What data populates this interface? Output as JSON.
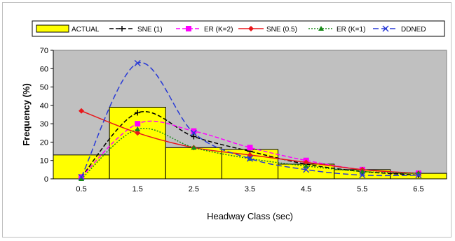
{
  "chart_data": {
    "type": "bar",
    "xlabel": "Headway Class (sec)",
    "ylabel": "Frequency (%)",
    "ylim": [
      0,
      70
    ],
    "yticks": [
      0,
      10,
      20,
      30,
      40,
      50,
      60,
      70
    ],
    "categories": [
      "0.5",
      "1.5",
      "2.5",
      "3.5",
      "4.5",
      "5.5",
      "6.5"
    ],
    "plot_background": "#c0c0c0",
    "legend_position": "top",
    "bars": {
      "name": "ACTUAL",
      "color": "#ffff00",
      "values": [
        13,
        39,
        17,
        16,
        8,
        5,
        3
      ]
    },
    "series": [
      {
        "name": "SNE (1)",
        "color": "#000000",
        "dash": "6,3",
        "marker": "plus",
        "values": [
          1,
          36,
          23,
          15,
          8,
          4,
          2
        ]
      },
      {
        "name": "ER (K=2)",
        "color": "#ff00ff",
        "dash": "6,3",
        "marker": "square",
        "values": [
          1,
          30,
          26,
          17,
          10,
          5,
          3
        ]
      },
      {
        "name": "SNE (0.5)",
        "color": "#e8171b",
        "dash": "",
        "marker": "diamond",
        "values": [
          37,
          25,
          17,
          13,
          9,
          5,
          3
        ]
      },
      {
        "name": "ER (K=1)",
        "color": "#1a8a1a",
        "dash": "2,2",
        "marker": "triangle",
        "values": [
          0,
          27,
          17,
          11,
          7,
          4,
          3
        ]
      },
      {
        "name": "DDNED",
        "color": "#2a3bd6",
        "dash": "8,4",
        "marker": "x",
        "values": [
          1,
          63,
          25,
          11,
          5,
          2,
          2
        ]
      }
    ]
  }
}
